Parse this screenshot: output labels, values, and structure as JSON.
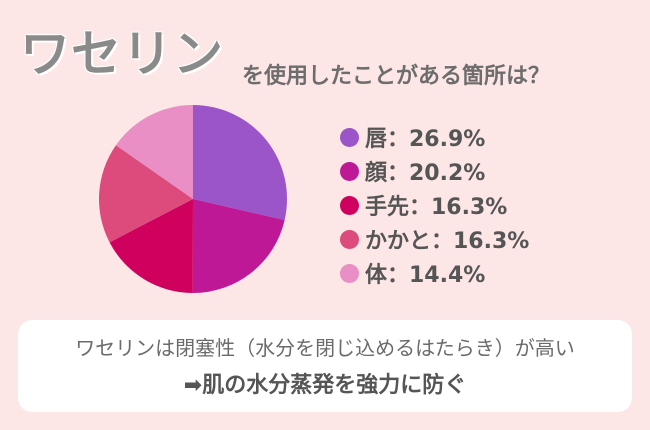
{
  "header": {
    "title": "ワセリン",
    "subtitle": "を使用したことがある箇所は？"
  },
  "chart_data": {
    "type": "pie",
    "categories": [
      "唇",
      "顔",
      "手先",
      "かかと",
      "体"
    ],
    "values": [
      26.9,
      20.2,
      16.3,
      16.3,
      14.4
    ],
    "labels": [
      "唇：26.9%",
      "顔：20.2%",
      "手先：16.3%",
      "かかと：16.3%",
      "体：14.4%"
    ],
    "colors": [
      "#9b55c9",
      "#be1896",
      "#d0005f",
      "#dd4a7c",
      "#ea8ec6"
    ],
    "legend_position": "right"
  },
  "note": {
    "line1": "ワセリンは閉塞性（水分を閉じ込めるはたらき）が高い",
    "line2": "➡肌の水分蒸発を強力に防ぐ"
  }
}
